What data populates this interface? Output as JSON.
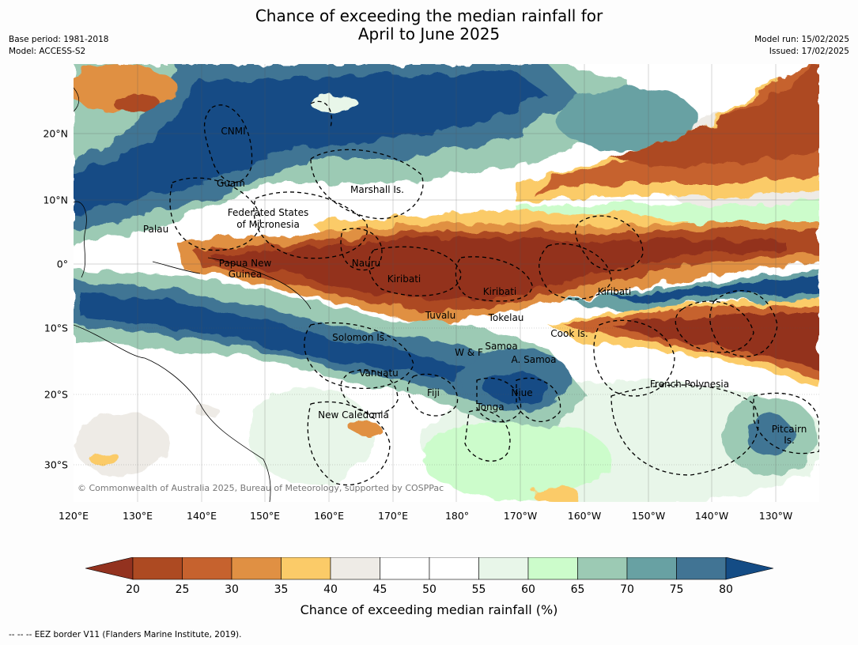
{
  "title": {
    "line1": "Chance of exceeding the median rainfall for",
    "line2": "April to June 2025"
  },
  "meta_left": {
    "base_period": "Base period: 1981-2018",
    "model": "Model: ACCESS-S2"
  },
  "meta_right": {
    "model_run": "Model run: 15/02/2025",
    "issued": "Issued: 17/02/2025"
  },
  "map": {
    "copyright": "© Commonwealth of Australia 2025, Bureau of Meteorology, supported by COSPPac",
    "lat_ticks": [
      "20°N",
      "10°N",
      "0°",
      "10°S",
      "20°S",
      "30°S"
    ],
    "lon_ticks": [
      "120°E",
      "130°E",
      "140°E",
      "150°E",
      "160°E",
      "170°E",
      "180°",
      "170°W",
      "160°W",
      "150°W",
      "140°W",
      "130°W"
    ],
    "regions": [
      {
        "name": "CNMI"
      },
      {
        "name": "Guam"
      },
      {
        "name": "Marshall Is."
      },
      {
        "name": "Federated States"
      },
      {
        "name": "of Micronesia"
      },
      {
        "name": "Palau"
      },
      {
        "name": "Papua New"
      },
      {
        "name": "Guinea"
      },
      {
        "name": "Nauru"
      },
      {
        "name": "Kiribati"
      },
      {
        "name": "Kiribati"
      },
      {
        "name": "Kiribati"
      },
      {
        "name": "Tuvalu"
      },
      {
        "name": "Tokelau"
      },
      {
        "name": "Cook Is."
      },
      {
        "name": "Solomon Is."
      },
      {
        "name": "Samoa"
      },
      {
        "name": "W & F"
      },
      {
        "name": "A. Samoa"
      },
      {
        "name": "Vanuatu"
      },
      {
        "name": "Fiji"
      },
      {
        "name": "Niue"
      },
      {
        "name": "Tonga"
      },
      {
        "name": "French Polynesia"
      },
      {
        "name": "New Caledonia"
      },
      {
        "name": "Pitcairn"
      },
      {
        "name": "Is."
      }
    ],
    "colors": {
      "brown_dark": "#93321f",
      "brown": "#ad4a22",
      "orange_dark": "#c6622e",
      "orange": "#e09043",
      "yellow": "#fbcb68",
      "grey": "#eeebe6",
      "white": "#ffffff",
      "green_pale": "#e8f6e9",
      "green_light": "#ccfccb",
      "green": "#9ccab4",
      "teal": "#68a1a3",
      "blue": "#417494",
      "blue_dark": "#144c85"
    }
  },
  "colorbar": {
    "ticks": [
      "20",
      "25",
      "30",
      "35",
      "40",
      "45",
      "50",
      "55",
      "60",
      "65",
      "70",
      "75",
      "80"
    ],
    "colors": [
      "#93321f",
      "#ad4a22",
      "#c6622e",
      "#e09043",
      "#fbcb68",
      "#eeebe6",
      "#ffffff",
      "#ffffff",
      "#e8f6e9",
      "#ccfccb",
      "#9ccab4",
      "#68a1a3",
      "#417494",
      "#144c85"
    ],
    "label": "Chance of exceeding median rainfall (%)"
  },
  "footnote": "--  --  -- EEZ border V11 (Flanders Marine Institute, 2019)."
}
